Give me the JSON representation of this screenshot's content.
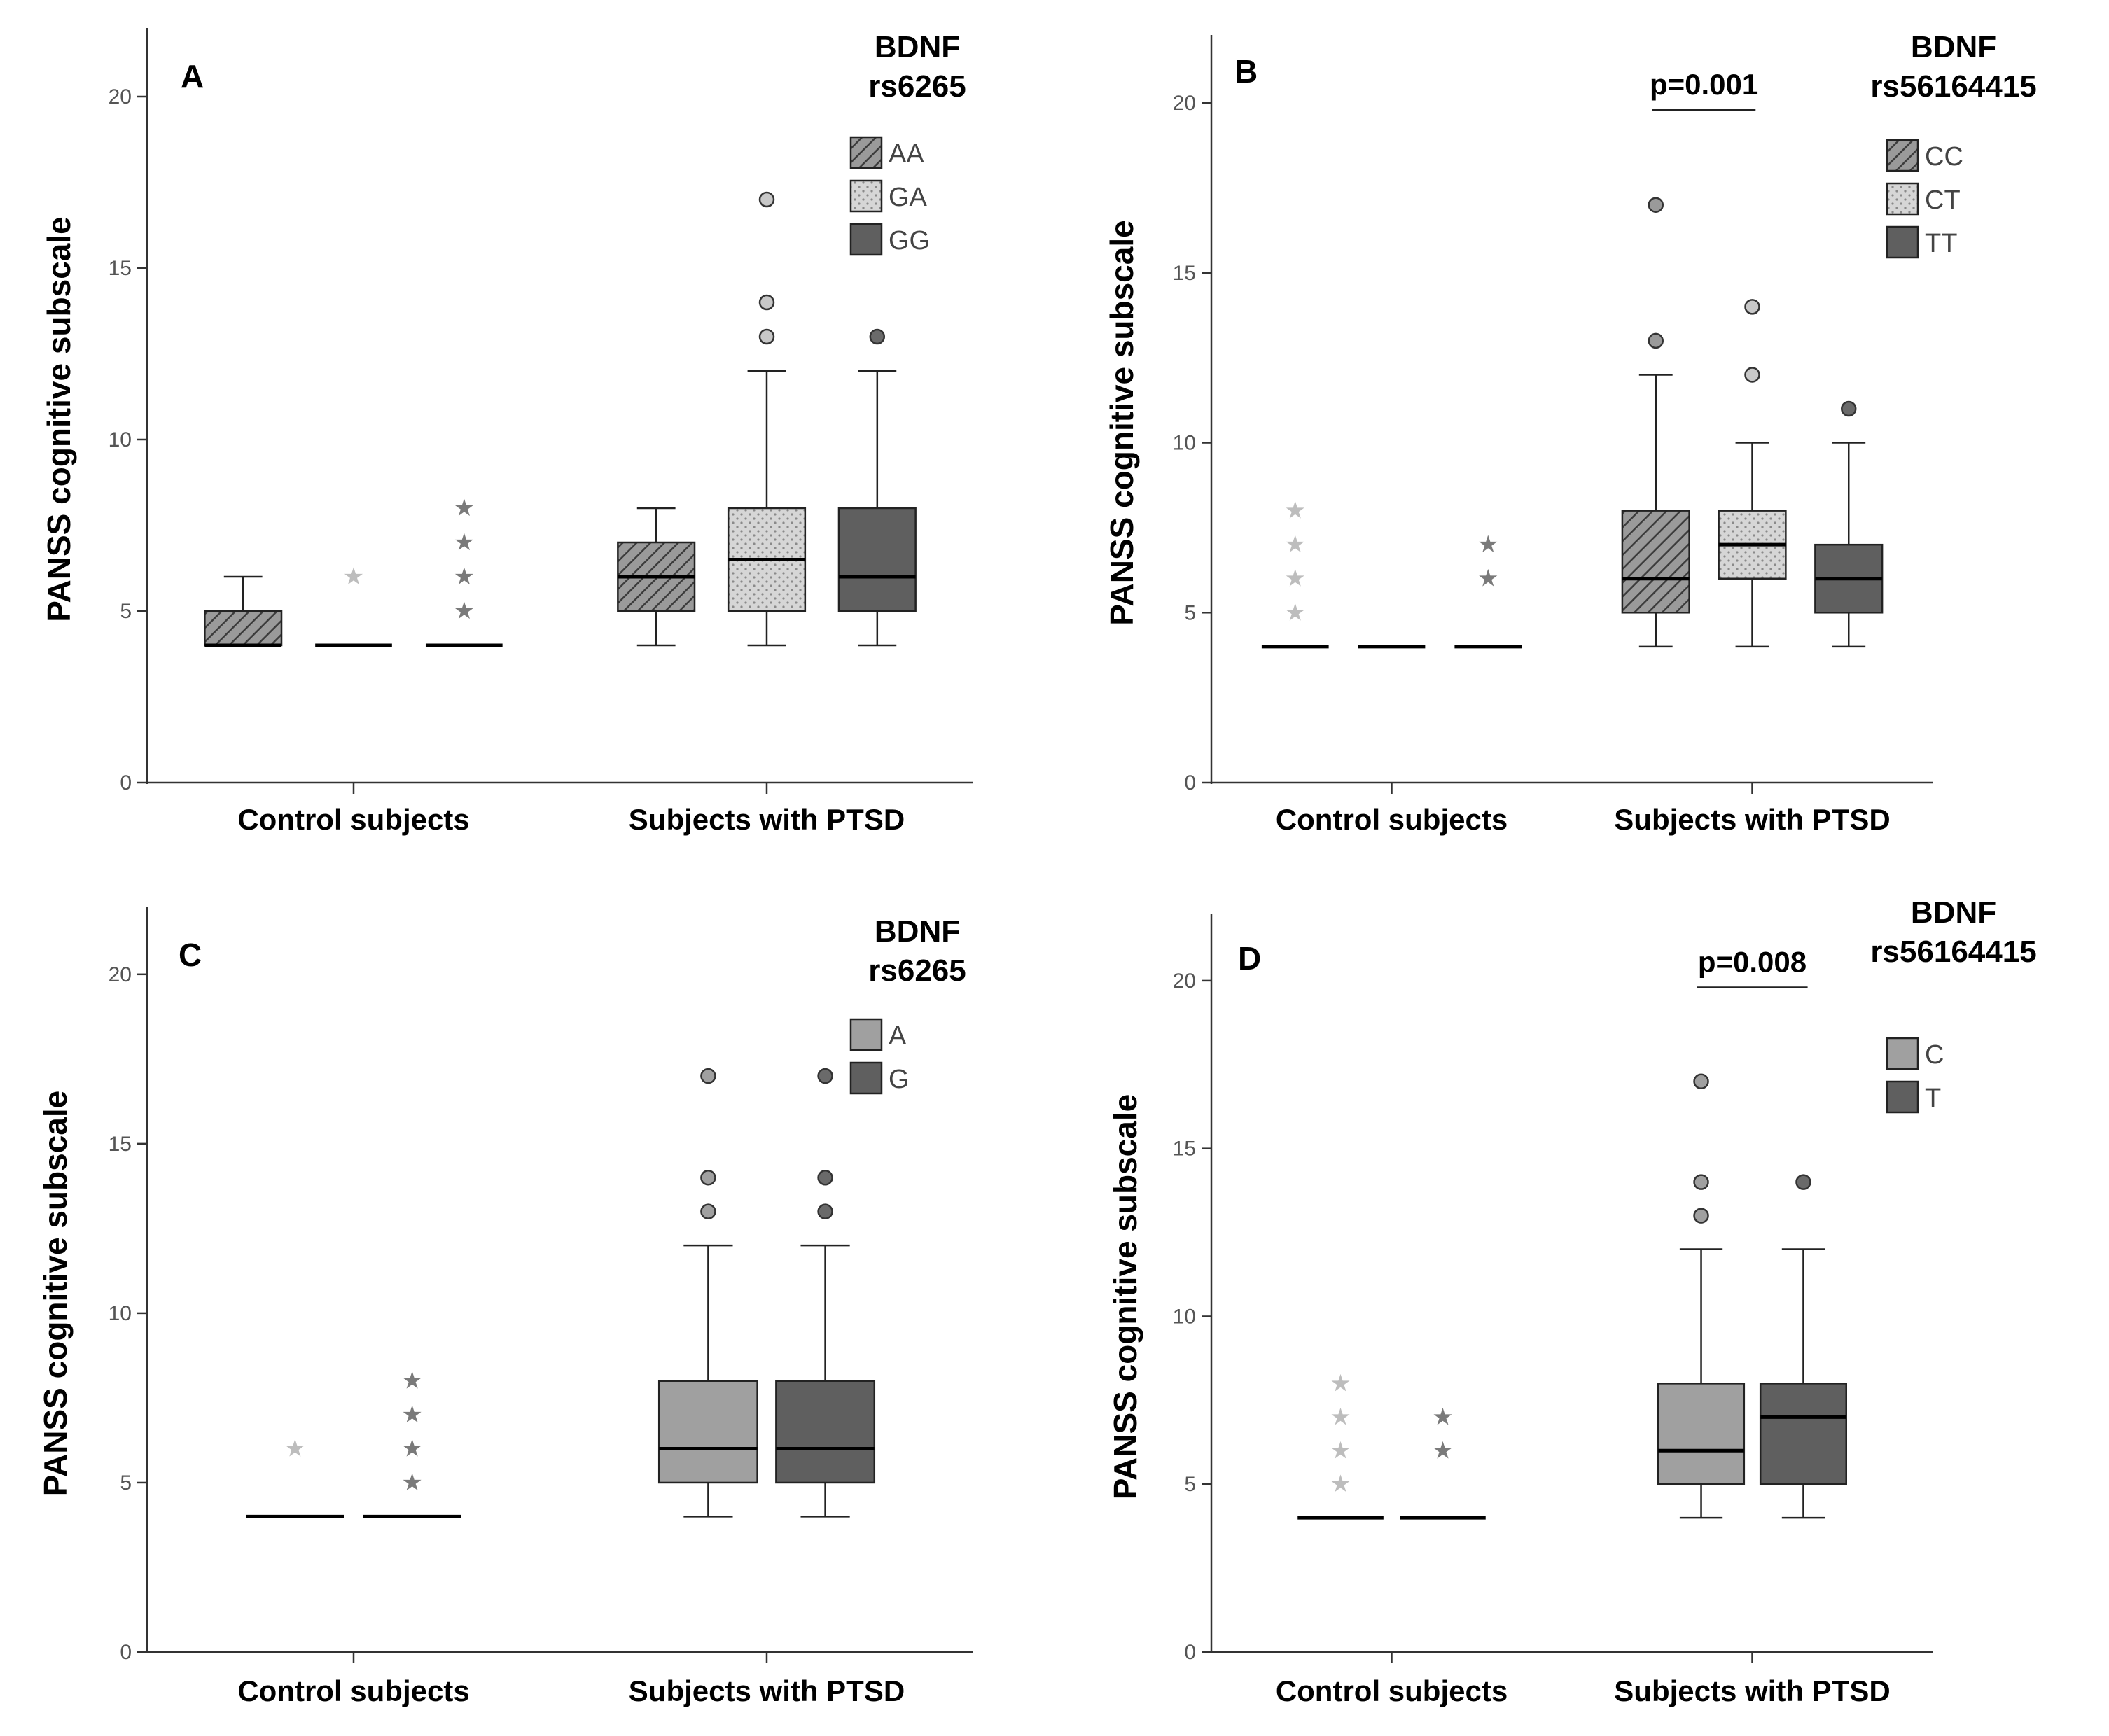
{
  "chart_data": [
    {
      "type": "boxplot",
      "panel": "A",
      "ylabel": "PANSS cognitive subscale",
      "ylim": [
        0,
        22
      ],
      "yticks": [
        0,
        5,
        10,
        15,
        20
      ],
      "categories": [
        "Control subjects",
        "Subjects with PTSD"
      ],
      "legend": {
        "title": [
          "BDNF",
          "rs6265"
        ],
        "placement": "top-right",
        "entries": [
          {
            "label": "AA",
            "fill": "hatch"
          },
          {
            "label": "GA",
            "fill": "dots"
          },
          {
            "label": "GG",
            "fill": "dark"
          }
        ]
      },
      "series": [
        {
          "name": "AA",
          "boxes": [
            {
              "whislo": 4,
              "q1": 4,
              "med": 4,
              "q3": 5,
              "whishi": 6,
              "outliers": [],
              "extremes": []
            },
            {
              "whislo": 4,
              "q1": 5,
              "med": 6,
              "q3": 7,
              "whishi": 8,
              "outliers": [],
              "extremes": []
            }
          ]
        },
        {
          "name": "GA",
          "boxes": [
            {
              "whislo": 4,
              "q1": 4,
              "med": 4,
              "q3": 4,
              "whishi": 4,
              "outliers": [],
              "extremes": [
                6
              ]
            },
            {
              "whislo": 4,
              "q1": 5,
              "med": 6.5,
              "q3": 8,
              "whishi": 12,
              "outliers": [
                13,
                14,
                17
              ],
              "extremes": []
            }
          ]
        },
        {
          "name": "GG",
          "boxes": [
            {
              "whislo": 4,
              "q1": 4,
              "med": 4,
              "q3": 4,
              "whishi": 4,
              "outliers": [],
              "extremes": [
                5,
                6,
                7,
                8
              ]
            },
            {
              "whislo": 4,
              "q1": 5,
              "med": 6,
              "q3": 8,
              "whishi": 12,
              "outliers": [
                13
              ],
              "extremes": []
            }
          ]
        }
      ],
      "annotations": []
    },
    {
      "type": "boxplot",
      "panel": "B",
      "ylabel": "PANSS cognitive subscale",
      "ylim": [
        0,
        22
      ],
      "yticks": [
        0,
        5,
        10,
        15,
        20
      ],
      "categories": [
        "Control subjects",
        "Subjects with PTSD"
      ],
      "legend": {
        "title": [
          "BDNF",
          "rs56164415"
        ],
        "placement": "top-right",
        "entries": [
          {
            "label": "CC",
            "fill": "hatch"
          },
          {
            "label": "CT",
            "fill": "dots"
          },
          {
            "label": "TT",
            "fill": "dark"
          }
        ]
      },
      "series": [
        {
          "name": "CC",
          "boxes": [
            {
              "whislo": 4,
              "q1": 4,
              "med": 4,
              "q3": 4,
              "whishi": 4,
              "outliers": [],
              "extremes": [
                5,
                6,
                7,
                8
              ]
            },
            {
              "whislo": 4,
              "q1": 5,
              "med": 6,
              "q3": 8,
              "whishi": 12,
              "outliers": [
                13,
                17
              ],
              "extremes": []
            }
          ]
        },
        {
          "name": "CT",
          "boxes": [
            {
              "whislo": 4,
              "q1": 4,
              "med": 4,
              "q3": 4,
              "whishi": 4,
              "outliers": [],
              "extremes": []
            },
            {
              "whislo": 4,
              "q1": 6,
              "med": 7,
              "q3": 8,
              "whishi": 10,
              "outliers": [
                12,
                14
              ],
              "extremes": []
            }
          ]
        },
        {
          "name": "TT",
          "boxes": [
            {
              "whislo": 4,
              "q1": 4,
              "med": 4,
              "q3": 4,
              "whishi": 4,
              "outliers": [],
              "extremes": [
                6,
                7
              ]
            },
            {
              "whislo": 4,
              "q1": 5,
              "med": 6,
              "q3": 7,
              "whishi": 10,
              "outliers": [
                11
              ],
              "extremes": []
            }
          ]
        }
      ],
      "annotations": [
        {
          "text": "p=0.001",
          "from": "CC",
          "to": "CT",
          "category": "Subjects with PTSD",
          "y": 19.8
        }
      ]
    },
    {
      "type": "boxplot",
      "panel": "C",
      "ylabel": "PANSS cognitive subscale",
      "ylim": [
        0,
        22
      ],
      "yticks": [
        0,
        5,
        10,
        15,
        20
      ],
      "categories": [
        "Control subjects",
        "Subjects with PTSD"
      ],
      "legend": {
        "title": [
          "BDNF",
          "rs6265"
        ],
        "placement": "top-right",
        "entries": [
          {
            "label": "A",
            "fill": "light"
          },
          {
            "label": "G",
            "fill": "dark"
          }
        ]
      },
      "series": [
        {
          "name": "A",
          "boxes": [
            {
              "whislo": 4,
              "q1": 4,
              "med": 4,
              "q3": 4,
              "whishi": 4,
              "outliers": [],
              "extremes": [
                6
              ]
            },
            {
              "whislo": 4,
              "q1": 5,
              "med": 6,
              "q3": 8,
              "whishi": 12,
              "outliers": [
                13,
                14,
                17
              ],
              "extremes": []
            }
          ]
        },
        {
          "name": "G",
          "boxes": [
            {
              "whislo": 4,
              "q1": 4,
              "med": 4,
              "q3": 4,
              "whishi": 4,
              "outliers": [],
              "extremes": [
                5,
                6,
                7,
                8
              ]
            },
            {
              "whislo": 4,
              "q1": 5,
              "med": 6,
              "q3": 8,
              "whishi": 12,
              "outliers": [
                13,
                14,
                17
              ],
              "extremes": []
            }
          ]
        }
      ],
      "annotations": []
    },
    {
      "type": "boxplot",
      "panel": "D",
      "ylabel": "PANSS cognitive subscale",
      "ylim": [
        0,
        22
      ],
      "yticks": [
        0,
        5,
        10,
        15,
        20
      ],
      "categories": [
        "Control subjects",
        "Subjects with PTSD"
      ],
      "legend": {
        "title": [
          "BDNF",
          "rs56164415"
        ],
        "placement": "top-right",
        "entries": [
          {
            "label": "C",
            "fill": "light"
          },
          {
            "label": "T",
            "fill": "dark"
          }
        ]
      },
      "series": [
        {
          "name": "C",
          "boxes": [
            {
              "whislo": 4,
              "q1": 4,
              "med": 4,
              "q3": 4,
              "whishi": 4,
              "outliers": [],
              "extremes": [
                5,
                6,
                7,
                8
              ]
            },
            {
              "whislo": 4,
              "q1": 5,
              "med": 6,
              "q3": 8,
              "whishi": 12,
              "outliers": [
                13,
                14,
                17
              ],
              "extremes": []
            }
          ]
        },
        {
          "name": "T",
          "boxes": [
            {
              "whislo": 4,
              "q1": 4,
              "med": 4,
              "q3": 4,
              "whishi": 4,
              "outliers": [],
              "extremes": [
                6,
                7
              ]
            },
            {
              "whislo": 4,
              "q1": 5,
              "med": 7,
              "q3": 8,
              "whishi": 12,
              "outliers": [
                14
              ],
              "extremes": []
            }
          ]
        }
      ],
      "annotations": [
        {
          "text": "p=0.008",
          "from": "C",
          "to": "T",
          "category": "Subjects with PTSD",
          "y": 19.8
        }
      ]
    }
  ],
  "colors": {
    "hatch_fill": "#9a9a9a",
    "hatch_line": "#3c3c3c",
    "dots_fill": "#d6d6d6",
    "dots_dot": "#8a8a8a",
    "dark_fill": "#5f5f5f",
    "light_fill": "#a0a0a0",
    "axis": "#333333",
    "light_star": "#bdbdbd",
    "dark_star": "#7a7a7a"
  }
}
